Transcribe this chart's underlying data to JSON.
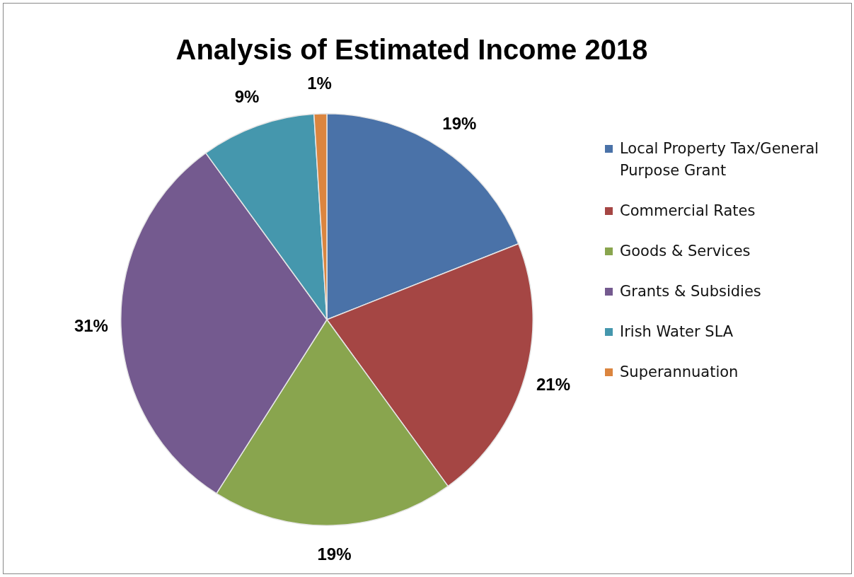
{
  "chart_data": {
    "type": "pie",
    "title": "Analysis of Estimated Income 2018",
    "categories": [
      "Local Property Tax/General Purpose Grant",
      "Commercial Rates",
      "Goods & Services",
      "Grants & Subsidies",
      "Irish Water SLA",
      "Superannuation"
    ],
    "values": [
      19,
      21,
      19,
      31,
      9,
      1
    ],
    "colors": [
      "#4a72a8",
      "#a54644",
      "#89a54e",
      "#745a8f",
      "#4597ad",
      "#db853f"
    ],
    "value_labels": [
      "19%",
      "21%",
      "19%",
      "31%",
      "9%",
      "1%"
    ],
    "legend": "right"
  }
}
